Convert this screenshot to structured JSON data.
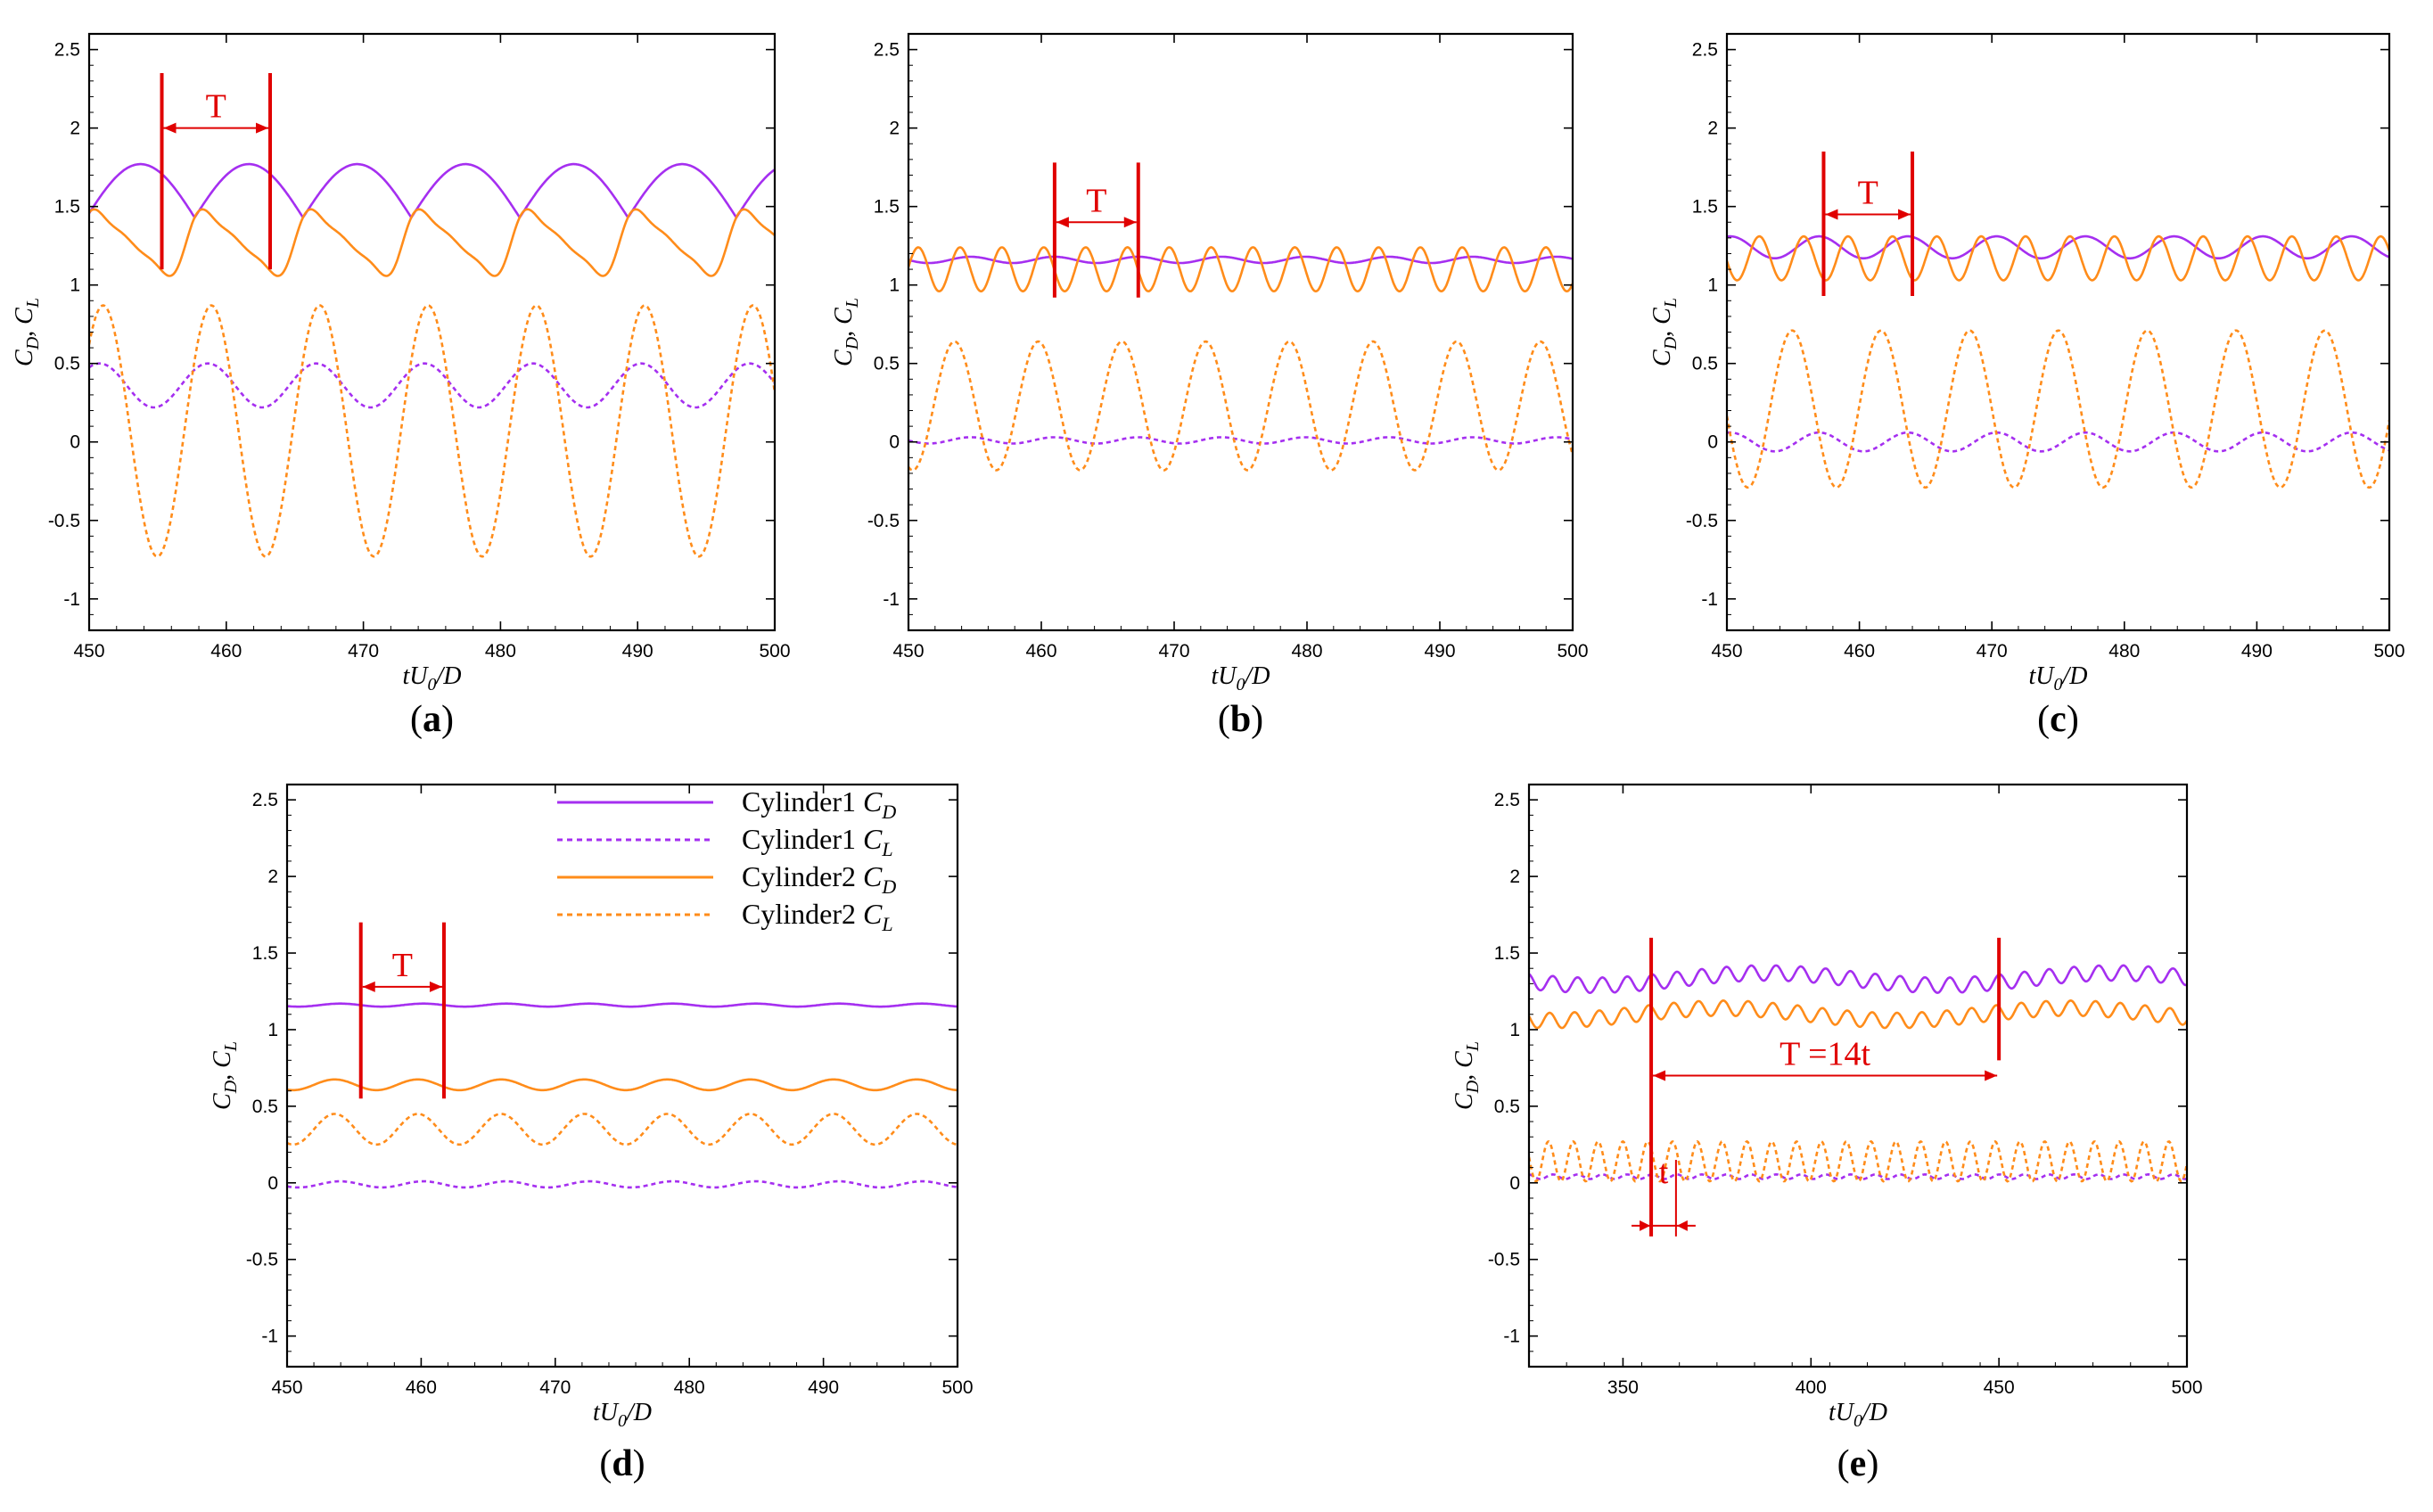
{
  "figure": {
    "axis_colors": {
      "cyl1": "#a52ff0",
      "cyl2": "#ff8c1a",
      "annotation": "#e00000"
    }
  },
  "legend": {
    "items": [
      {
        "main": "Cylinder1 ",
        "sym": "C",
        "sub": "D",
        "series": "cyl1_cd",
        "dash": false
      },
      {
        "main": "Cylinder1 ",
        "sym": "C",
        "sub": "L",
        "series": "cyl1_cl",
        "dash": true
      },
      {
        "main": "Cylinder2 ",
        "sym": "C",
        "sub": "D",
        "series": "cyl2_cd",
        "dash": false
      },
      {
        "main": "Cylinder2 ",
        "sym": "C",
        "sub": "L",
        "series": "cyl2_cl",
        "dash": true
      }
    ]
  },
  "chart_data": [
    {
      "type": "line",
      "panel_label": "(a)",
      "xlabel": "tU0/D",
      "ylabel": "CD, CL",
      "xlim": [
        450,
        500
      ],
      "ylim": [
        -1.2,
        2.6
      ],
      "xticks": [
        450,
        460,
        470,
        480,
        490,
        500
      ],
      "yticks": [
        -1,
        -0.5,
        0,
        0.5,
        1,
        1.5,
        2,
        2.5
      ],
      "series": [
        {
          "name": "Cylinder1 CD",
          "color": "cyl1",
          "dash": false,
          "model": {
            "period": 7.9,
            "shape": "cycloid",
            "mean": 1.6,
            "amp": 0.17,
            "phase": 0.2
          }
        },
        {
          "name": "Cylinder1 CL",
          "color": "cyl1",
          "dash": true,
          "model": {
            "period": 7.9,
            "shape": "sin",
            "mean": 0.36,
            "amp": 0.14,
            "phase": 1.2
          }
        },
        {
          "name": "Cylinder2 CD",
          "color": "cyl2",
          "dash": false,
          "model": {
            "period": 7.9,
            "shape": "sawtooth",
            "mean": 1.27,
            "amp": 0.18,
            "phase": 0.9
          }
        },
        {
          "name": "Cylinder2 CL",
          "color": "cyl2",
          "dash": true,
          "model": {
            "period": 7.9,
            "shape": "sin",
            "mean": 0.07,
            "amp": 0.8,
            "phase": 1.0
          }
        }
      ],
      "annotations": [
        {
          "label": "T",
          "x1": 455.3,
          "x2": 463.2,
          "ymin": 1.1,
          "ymax": 2.35,
          "arrow_y": 2.0
        }
      ]
    },
    {
      "type": "line",
      "panel_label": "(b)",
      "xlabel": "tU0/D",
      "ylabel": "CD, CL",
      "xlim": [
        450,
        500
      ],
      "ylim": [
        -1.2,
        2.6
      ],
      "xticks": [
        450,
        460,
        470,
        480,
        490,
        500
      ],
      "yticks": [
        -1,
        -0.5,
        0,
        0.5,
        1,
        1.5,
        2,
        2.5
      ],
      "series": [
        {
          "name": "Cylinder1 CD",
          "color": "cyl1",
          "dash": false,
          "model": {
            "period": 6.3,
            "shape": "sin",
            "mean": 1.16,
            "amp": 0.02,
            "phase": 0.5
          }
        },
        {
          "name": "Cylinder1 CL",
          "color": "cyl1",
          "dash": true,
          "model": {
            "period": 6.3,
            "shape": "sin",
            "mean": 0.01,
            "amp": 0.02,
            "phase": 0.5
          }
        },
        {
          "name": "Cylinder2 CD",
          "color": "cyl2",
          "dash": false,
          "model": {
            "period": 3.15,
            "shape": "sin",
            "mean": 1.1,
            "amp": 0.14,
            "phase": 1.0
          }
        },
        {
          "name": "Cylinder2 CL",
          "color": "cyl2",
          "dash": true,
          "model": {
            "period": 6.3,
            "shape": "sin",
            "mean": 0.23,
            "amp": 0.41,
            "phase": 1.7
          }
        }
      ],
      "annotations": [
        {
          "label": "T",
          "x1": 461.0,
          "x2": 467.3,
          "ymin": 0.92,
          "ymax": 1.78,
          "arrow_y": 1.4
        }
      ]
    },
    {
      "type": "line",
      "panel_label": "(c)",
      "xlabel": "tU0/D",
      "ylabel": "CD, CL",
      "xlim": [
        450,
        500
      ],
      "ylim": [
        -1.2,
        2.6
      ],
      "xticks": [
        450,
        460,
        470,
        480,
        490,
        500
      ],
      "yticks": [
        -1,
        -0.5,
        0,
        0.5,
        1,
        1.5,
        2,
        2.5
      ],
      "series": [
        {
          "name": "Cylinder1 CD",
          "color": "cyl1",
          "dash": false,
          "model": {
            "period": 6.7,
            "shape": "sin",
            "mean": 1.24,
            "amp": 0.07,
            "phase": 0.3
          }
        },
        {
          "name": "Cylinder1 CL",
          "color": "cyl1",
          "dash": true,
          "model": {
            "period": 6.7,
            "shape": "sin",
            "mean": 0.0,
            "amp": 0.06,
            "phase": 0.3
          }
        },
        {
          "name": "Cylinder2 CD",
          "color": "cyl2",
          "dash": false,
          "model": {
            "period": 3.35,
            "shape": "sin",
            "mean": 1.17,
            "amp": 0.14,
            "phase": 1.2
          }
        },
        {
          "name": "Cylinder2 CL",
          "color": "cyl2",
          "dash": true,
          "model": {
            "period": 6.7,
            "shape": "sin",
            "mean": 0.21,
            "amp": 0.5,
            "phase": 2.2
          }
        }
      ],
      "annotations": [
        {
          "label": "T",
          "x1": 457.3,
          "x2": 464.0,
          "ymin": 0.93,
          "ymax": 1.85,
          "arrow_y": 1.45
        }
      ]
    },
    {
      "type": "line",
      "panel_label": "(d)",
      "xlabel": "tU0/D",
      "ylabel": "CD, CL",
      "xlim": [
        450,
        500
      ],
      "ylim": [
        -1.2,
        2.6
      ],
      "xticks": [
        450,
        460,
        470,
        480,
        490,
        500
      ],
      "yticks": [
        -1,
        -0.5,
        0,
        0.5,
        1,
        1.5,
        2,
        2.5
      ],
      "series": [
        {
          "name": "Cylinder1 CD",
          "color": "cyl1",
          "dash": false,
          "model": {
            "period": 6.2,
            "shape": "sin",
            "mean": 1.16,
            "amp": 0.01,
            "phase": 0.2
          }
        },
        {
          "name": "Cylinder1 CL",
          "color": "cyl1",
          "dash": true,
          "model": {
            "period": 6.2,
            "shape": "sin",
            "mean": -0.01,
            "amp": 0.02,
            "phase": 0.2
          }
        },
        {
          "name": "Cylinder2 CD",
          "color": "cyl2",
          "dash": false,
          "model": {
            "period": 6.2,
            "shape": "sin",
            "mean": 0.64,
            "amp": 0.035,
            "phase": 0.6
          }
        },
        {
          "name": "Cylinder2 CL",
          "color": "cyl2",
          "dash": true,
          "model": {
            "period": 6.2,
            "shape": "sin",
            "mean": 0.35,
            "amp": 0.1,
            "phase": 0.6
          }
        }
      ],
      "annotations": [
        {
          "label": "T",
          "x1": 455.5,
          "x2": 461.7,
          "ymin": 0.55,
          "ymax": 1.7,
          "arrow_y": 1.28
        }
      ]
    },
    {
      "type": "line",
      "panel_label": "(e)",
      "xlabel": "tU0/D",
      "ylabel": "CD, CL",
      "xlim": [
        325,
        500
      ],
      "ylim": [
        -1.2,
        2.6
      ],
      "xticks": [
        350,
        400,
        450,
        500
      ],
      "yticks": [
        -1,
        -0.5,
        0,
        0.5,
        1,
        1.5,
        2,
        2.5
      ],
      "series": [
        {
          "name": "Cylinder1 CD",
          "color": "cyl1",
          "dash": false,
          "model": {
            "period": 6.6,
            "period2": 92.4,
            "shape": "dual",
            "mean": 1.33,
            "amp": 0.05,
            "amp2": 0.04,
            "phase": 0.3
          }
        },
        {
          "name": "Cylinder1 CL",
          "color": "cyl1",
          "dash": true,
          "model": {
            "period": 6.6,
            "shape": "sin",
            "mean": 0.04,
            "amp": 0.015,
            "phase": 0.3
          }
        },
        {
          "name": "Cylinder2 CD",
          "color": "cyl2",
          "dash": false,
          "model": {
            "period": 6.6,
            "period2": 92.4,
            "shape": "dual",
            "mean": 1.1,
            "amp": 0.05,
            "amp2": 0.04,
            "phase": 1.1
          }
        },
        {
          "name": "Cylinder2 CL",
          "color": "cyl2",
          "dash": true,
          "model": {
            "period": 6.6,
            "shape": "sin",
            "mean": 0.14,
            "amp": 0.13,
            "phase": 1.4
          }
        }
      ],
      "annotations": [
        {
          "label": "T =14t",
          "x1": 357.5,
          "x2": 450.0,
          "ymin": 0.8,
          "ymax": 1.6,
          "arrow_y": 0.7,
          "long_from": -0.35
        },
        {
          "label": "t",
          "x1": 357.5,
          "x2": 364.1,
          "ymin": -0.35,
          "ymax": 0.15,
          "arrow_y": -0.28,
          "outward": true
        }
      ]
    }
  ]
}
